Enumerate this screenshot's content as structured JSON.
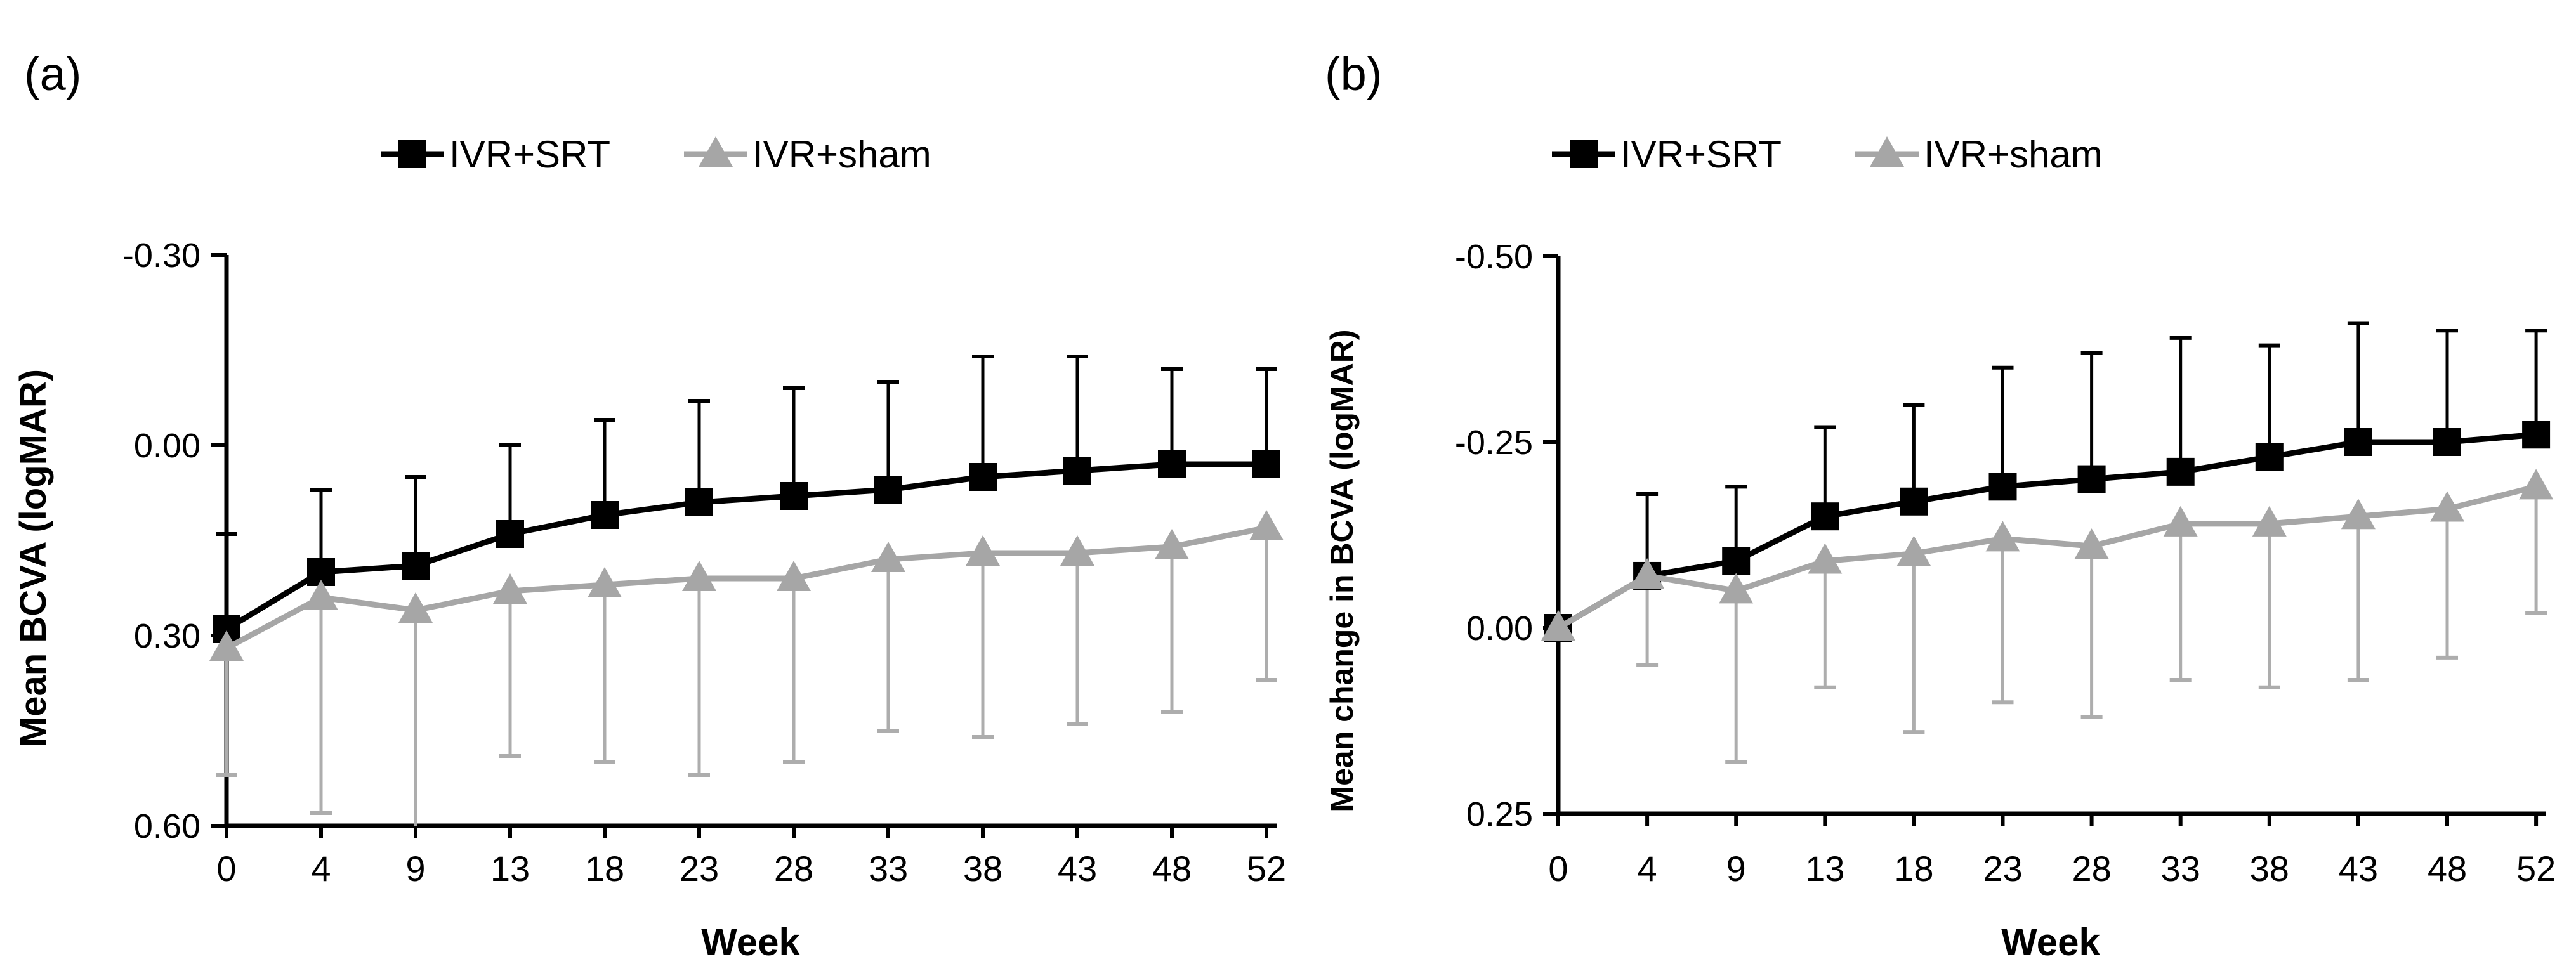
{
  "page": {
    "background": "#ffffff"
  },
  "chart_data": [
    {
      "type": "line",
      "panel_id": "a",
      "panel_label": "(a)",
      "title": "",
      "xlabel": "Week",
      "ylabel": "Mean BCVA (logMAR)",
      "categories": [
        "0",
        "4",
        "9",
        "13",
        "18",
        "23",
        "28",
        "33",
        "38",
        "43",
        "48",
        "52"
      ],
      "x_axis": {
        "title": "Week",
        "type": "categorical"
      },
      "y_axis": {
        "title": "Mean BCVA (logMAR)",
        "ticks": [
          "-0.30",
          "0.00",
          "0.30",
          "0.60"
        ],
        "tick_values": [
          -0.3,
          0.0,
          0.3,
          0.6
        ],
        "min": -0.3,
        "max": 0.6,
        "reversed": true,
        "grid": false
      },
      "legend_position": "top",
      "series": [
        {
          "name": "IVR+SRT",
          "color": "#000000",
          "error_color": "#000000",
          "marker": "square",
          "values": [
            0.29,
            0.2,
            0.19,
            0.14,
            0.11,
            0.09,
            0.08,
            0.07,
            0.05,
            0.04,
            0.03,
            0.03
          ],
          "whisker_direction": "up",
          "whisker_ends": [
            0.14,
            0.07,
            0.05,
            0.0,
            -0.04,
            -0.07,
            -0.09,
            -0.1,
            -0.14,
            -0.14,
            -0.12,
            -0.12
          ]
        },
        {
          "name": "IVR+sham",
          "color": "#a6a6a6",
          "error_color": "#adadad",
          "marker": "triangle",
          "values": [
            0.32,
            0.24,
            0.26,
            0.23,
            0.22,
            0.21,
            0.21,
            0.18,
            0.17,
            0.17,
            0.16,
            0.13
          ],
          "whisker_direction": "down",
          "whisker_ends": [
            0.52,
            0.58,
            0.61,
            0.49,
            0.5,
            0.52,
            0.5,
            0.45,
            0.46,
            0.44,
            0.42,
            0.37
          ]
        }
      ]
    },
    {
      "type": "line",
      "panel_id": "b",
      "panel_label": "(b)",
      "title": "",
      "xlabel": "Week",
      "ylabel": "Mean change in BCVA (logMAR)",
      "categories": [
        "0",
        "4",
        "9",
        "13",
        "18",
        "23",
        "28",
        "33",
        "38",
        "43",
        "48",
        "52"
      ],
      "x_axis": {
        "title": "Week",
        "type": "categorical"
      },
      "y_axis": {
        "title": "Mean change in BCVA (logMAR)",
        "ticks": [
          "-0.50",
          "-0.25",
          "0.00",
          "0.25"
        ],
        "tick_values": [
          -0.5,
          -0.25,
          0.0,
          0.25
        ],
        "min": -0.5,
        "max": 0.25,
        "reversed": true,
        "grid": false
      },
      "legend_position": "top",
      "series": [
        {
          "name": "IVR+SRT",
          "color": "#000000",
          "error_color": "#000000",
          "marker": "square",
          "values": [
            0.0,
            -0.07,
            -0.09,
            -0.15,
            -0.17,
            -0.19,
            -0.2,
            -0.21,
            -0.23,
            -0.25,
            -0.25,
            -0.26
          ],
          "whisker_direction": "up",
          "whisker_ends": [
            0.0,
            -0.18,
            -0.19,
            -0.27,
            -0.3,
            -0.35,
            -0.37,
            -0.39,
            -0.38,
            -0.41,
            -0.4,
            -0.4
          ]
        },
        {
          "name": "IVR+sham",
          "color": "#a6a6a6",
          "error_color": "#adadad",
          "marker": "triangle",
          "values": [
            0.0,
            -0.07,
            -0.05,
            -0.09,
            -0.1,
            -0.12,
            -0.11,
            -0.14,
            -0.14,
            -0.15,
            -0.16,
            -0.19
          ],
          "whisker_direction": "down",
          "whisker_ends": [
            0.0,
            0.05,
            0.18,
            0.08,
            0.14,
            0.1,
            0.12,
            0.07,
            0.08,
            0.07,
            0.04,
            -0.02
          ]
        }
      ]
    }
  ]
}
